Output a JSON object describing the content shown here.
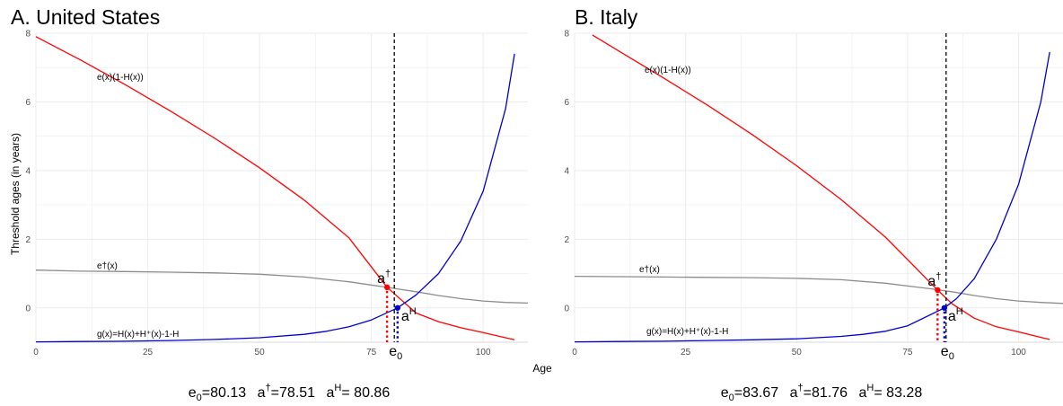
{
  "figure": {
    "xlabel": "Age",
    "ylabel": "Threshold ages (in years)"
  },
  "chart_data": [
    {
      "type": "line",
      "title": "A. United States",
      "xlim": [
        0,
        110
      ],
      "ylim": [
        -1,
        8
      ],
      "x_ticks": [
        0,
        25,
        50,
        75,
        100
      ],
      "y_ticks": [
        0,
        2,
        4,
        6,
        8
      ],
      "x_tick_labels": [
        "0",
        "25",
        "50",
        "75",
        "100"
      ],
      "y_tick_labels": [
        "0",
        "2",
        "4",
        "6",
        "8"
      ],
      "grid": true,
      "series": [
        {
          "name": "e(x)(1-H(x))",
          "color": "#ff0000",
          "x": [
            0,
            10,
            20,
            30,
            40,
            50,
            60,
            70,
            78.51,
            85,
            90,
            95,
            100,
            105,
            107
          ],
          "y": [
            7.9,
            7.22,
            6.5,
            5.74,
            4.94,
            4.08,
            3.14,
            2.04,
            0.6,
            -0.15,
            -0.4,
            -0.58,
            -0.72,
            -0.87,
            -0.93
          ]
        },
        {
          "name": "e†(x)",
          "color": "#8c8c8c",
          "x": [
            0,
            10,
            20,
            30,
            40,
            50,
            60,
            70,
            80,
            85,
            90,
            95,
            100,
            105,
            110
          ],
          "y": [
            1.1,
            1.07,
            1.06,
            1.04,
            1.02,
            0.98,
            0.9,
            0.76,
            0.57,
            0.47,
            0.36,
            0.27,
            0.2,
            0.16,
            0.14
          ]
        },
        {
          "name": "g(x)=H(x)+H⁺(x)-1-H",
          "color": "#0000cc",
          "x": [
            0,
            10,
            20,
            30,
            40,
            50,
            60,
            65,
            70,
            75,
            80.86,
            85,
            90,
            95,
            100,
            105,
            107
          ],
          "y": [
            -0.99,
            -0.98,
            -0.97,
            -0.95,
            -0.92,
            -0.87,
            -0.77,
            -0.68,
            -0.55,
            -0.35,
            0.0,
            0.38,
            1.0,
            1.95,
            3.4,
            5.8,
            7.4
          ]
        }
      ],
      "vline": {
        "x": 80.13,
        "label": "e0"
      },
      "points": [
        {
          "label": "a†",
          "x": 78.51,
          "y": 0.6,
          "color": "#ff0000"
        },
        {
          "label": "aH",
          "x": 80.86,
          "y": 0.0,
          "color": "#0000cc"
        }
      ],
      "caption": {
        "e0": "80.13",
        "a_dagger": "78.51",
        "a_H": "80.86"
      }
    },
    {
      "type": "line",
      "title": "B. Italy",
      "xlim": [
        0,
        110
      ],
      "ylim": [
        -1,
        8
      ],
      "x_ticks": [
        0,
        25,
        50,
        75,
        100
      ],
      "y_ticks": [
        0,
        2,
        4,
        6,
        8
      ],
      "x_tick_labels": [
        "0",
        "25",
        "50",
        "75",
        "100"
      ],
      "y_tick_labels": [
        "0",
        "2",
        "4",
        "6",
        "8"
      ],
      "grid": true,
      "series": [
        {
          "name": "e(x)(1-H(x))",
          "color": "#ff0000",
          "x": [
            4,
            10,
            20,
            30,
            40,
            50,
            60,
            70,
            81.76,
            85,
            90,
            95,
            100,
            105,
            107
          ],
          "y": [
            7.95,
            7.48,
            6.7,
            5.9,
            5.05,
            4.14,
            3.16,
            2.06,
            0.52,
            0.12,
            -0.3,
            -0.55,
            -0.7,
            -0.86,
            -0.92
          ]
        },
        {
          "name": "e†(x)",
          "color": "#8c8c8c",
          "x": [
            0,
            10,
            20,
            30,
            40,
            50,
            60,
            70,
            80,
            85,
            90,
            95,
            100,
            105,
            110
          ],
          "y": [
            0.92,
            0.91,
            0.9,
            0.89,
            0.88,
            0.86,
            0.82,
            0.72,
            0.56,
            0.47,
            0.36,
            0.27,
            0.2,
            0.16,
            0.13
          ]
        },
        {
          "name": "g(x)=H(x)+H⁺(x)-1-H",
          "color": "#0000cc",
          "x": [
            0,
            10,
            20,
            30,
            40,
            50,
            60,
            65,
            70,
            75,
            83.28,
            86,
            90,
            95,
            100,
            105,
            107
          ],
          "y": [
            -0.99,
            -0.98,
            -0.97,
            -0.95,
            -0.93,
            -0.9,
            -0.83,
            -0.77,
            -0.68,
            -0.52,
            0.0,
            0.27,
            0.85,
            2.0,
            3.6,
            6.0,
            7.45
          ]
        }
      ],
      "vline": {
        "x": 83.67,
        "label": "e0"
      },
      "points": [
        {
          "label": "a†",
          "x": 81.76,
          "y": 0.52,
          "color": "#ff0000"
        },
        {
          "label": "aH",
          "x": 83.28,
          "y": 0.0,
          "color": "#0000cc"
        }
      ],
      "caption": {
        "e0": "83.67",
        "a_dagger": "81.76",
        "a_H": "83.28"
      }
    }
  ]
}
